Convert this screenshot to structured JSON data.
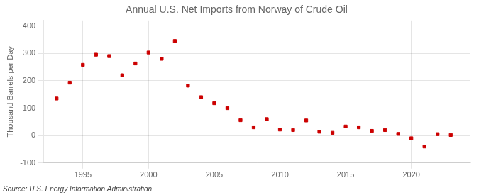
{
  "chart_data": {
    "type": "scatter",
    "title": "Annual U.S. Net Imports from Norway of Crude Oil",
    "ylabel": "Thousand Barrels per Day",
    "annotation": "Source: U.S. Energy Information Administration",
    "x": [
      1993,
      1994,
      1995,
      1996,
      1997,
      1998,
      1999,
      2000,
      2001,
      2002,
      2003,
      2004,
      2005,
      2006,
      2007,
      2008,
      2009,
      2010,
      2011,
      2012,
      2013,
      2014,
      2015,
      2016,
      2017,
      2018,
      2019,
      2020,
      2021,
      2022,
      2023
    ],
    "values": [
      135,
      193,
      258,
      295,
      290,
      220,
      263,
      303,
      280,
      345,
      182,
      140,
      118,
      100,
      56,
      30,
      60,
      22,
      20,
      55,
      14,
      10,
      33,
      30,
      17,
      20,
      6,
      -10,
      -40,
      5,
      2
    ],
    "color": "#cc0000",
    "marker": "square",
    "xlim": [
      1992,
      2024.5
    ],
    "xticks": [
      1995,
      2000,
      2005,
      2010,
      2015,
      2020
    ],
    "ylim": [
      -100,
      420
    ],
    "yticks": [
      -100,
      0,
      100,
      200,
      300,
      400
    ],
    "grid": true
  }
}
